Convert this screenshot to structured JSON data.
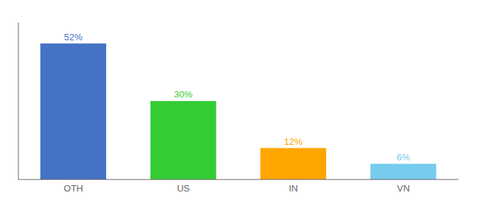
{
  "chart_data": {
    "type": "bar",
    "categories": [
      "OTH",
      "US",
      "IN",
      "VN"
    ],
    "values": [
      52,
      30,
      12,
      6
    ],
    "value_labels": [
      "52%",
      "30%",
      "12%",
      "6%"
    ],
    "colors": [
      "#4472C4",
      "#33CC33",
      "#FFA500",
      "#77CCEE"
    ],
    "ylim": [
      0,
      60
    ],
    "data_labels": true,
    "tick_labels": "x",
    "grid": false
  }
}
